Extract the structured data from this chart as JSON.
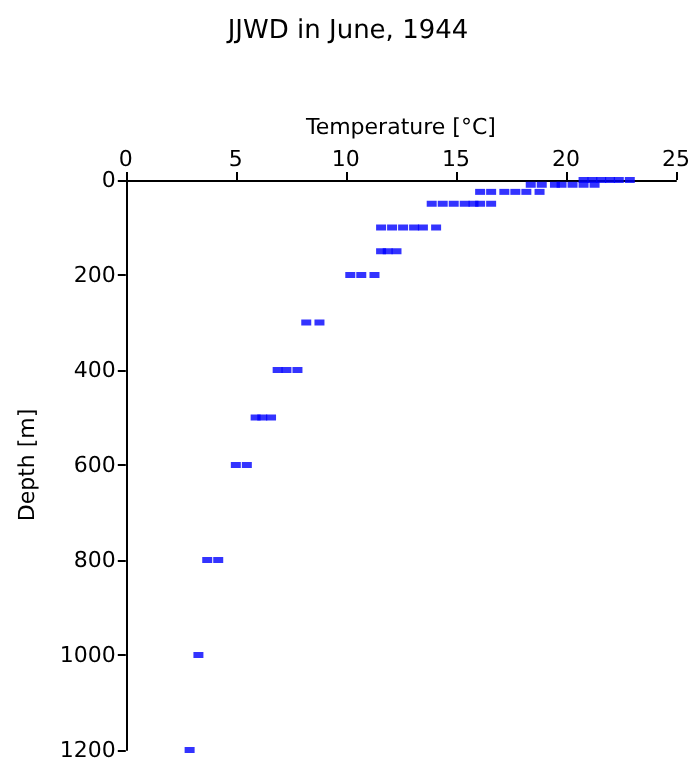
{
  "chart_data": {
    "type": "scatter",
    "title": "JJWD in June, 1944",
    "xlabel": "Temperature [°C]",
    "ylabel": "Depth [m]",
    "x": [
      20.8,
      21.2,
      21.6,
      22.0,
      22.4,
      22.9,
      18.4,
      18.9,
      19.5,
      19.8,
      20.3,
      20.8,
      21.3,
      16.1,
      16.6,
      17.2,
      17.7,
      18.2,
      18.8,
      13.9,
      14.4,
      14.9,
      15.4,
      15.8,
      16.1,
      16.6,
      11.6,
      12.1,
      12.6,
      13.1,
      13.5,
      14.1,
      11.6,
      11.9,
      12.3,
      10.2,
      10.7,
      11.3,
      8.2,
      8.8,
      6.9,
      7.3,
      7.8,
      5.9,
      6.2,
      6.6,
      5.0,
      5.5,
      3.7,
      4.2,
      3.3,
      2.9
    ],
    "values": [
      0,
      0,
      0,
      0,
      0,
      0,
      10,
      10,
      10,
      10,
      10,
      10,
      10,
      25,
      25,
      25,
      25,
      25,
      25,
      50,
      50,
      50,
      50,
      50,
      50,
      50,
      100,
      100,
      100,
      100,
      100,
      100,
      150,
      150,
      150,
      200,
      200,
      200,
      300,
      300,
      400,
      400,
      400,
      500,
      500,
      500,
      600,
      600,
      800,
      800,
      1000,
      1200
    ],
    "color": "#0000ff",
    "marker": "square",
    "xlim": [
      0,
      25
    ],
    "xticks": [
      0,
      5,
      10,
      15,
      20,
      25
    ],
    "ylim": [
      1200,
      0
    ],
    "yticks": [
      0,
      200,
      400,
      600,
      800,
      1000,
      1200
    ],
    "grid": false
  }
}
